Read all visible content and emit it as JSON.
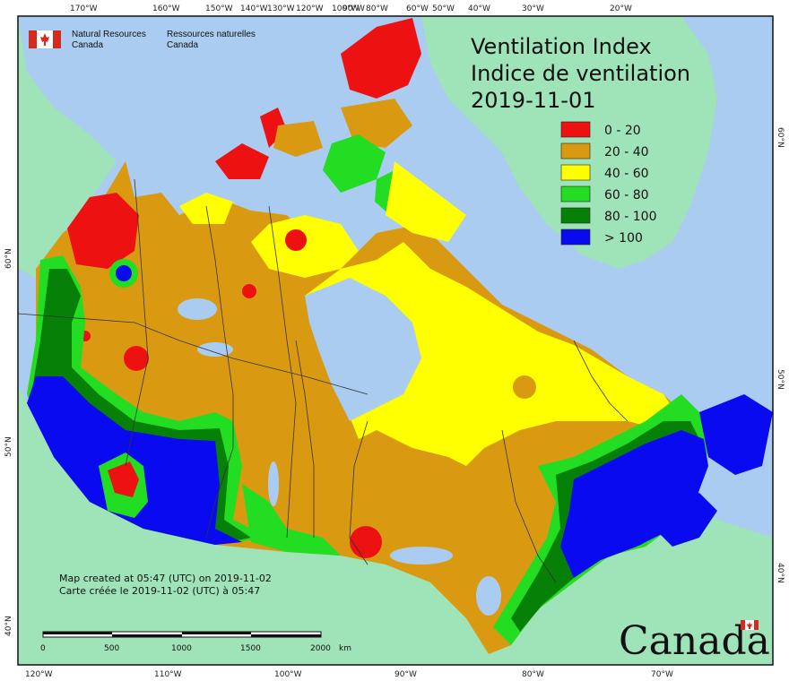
{
  "header": {
    "agency_en_line1": "Natural Resources",
    "agency_en_line2": "Canada",
    "agency_fr_line1": "Ressources naturelles",
    "agency_fr_line2": "Canada"
  },
  "title": {
    "line1": "Ventilation Index",
    "line2": "Indice de ventilation",
    "date": "2019-11-01"
  },
  "legend": [
    {
      "label": "0 - 20",
      "color": "#ee1111"
    },
    {
      "label": "20 - 40",
      "color": "#d99a12"
    },
    {
      "label": "40 - 60",
      "color": "#ffff00"
    },
    {
      "label": "60 - 80",
      "color": "#22dd22"
    },
    {
      "label": "80 - 100",
      "color": "#078007"
    },
    {
      "label": "> 100",
      "color": "#0a0af0"
    }
  ],
  "top_ticks": [
    "170°W",
    "160°W",
    "150°W",
    "140°W",
    "130°W",
    "120°W",
    "100°W",
    "90°W",
    "80°W",
    "60°W",
    "50°W",
    "40°W",
    "30°W",
    "20°W"
  ],
  "bottom_ticks": [
    "120°W",
    "110°W",
    "100°W",
    "90°W",
    "80°W",
    "70°W"
  ],
  "left_ticks": [
    "60°N",
    "50°N",
    "40°N"
  ],
  "right_ticks": [
    "60°N",
    "50°N",
    "40°N"
  ],
  "notes": {
    "line1": "Map created at 05:47 (UTC) on 2019-11-02",
    "line2": "Carte créée le 2019-11-02 (UTC) à 05:47"
  },
  "scalebar": {
    "labels": [
      "0",
      "500",
      "1000",
      "1500",
      "2000"
    ],
    "unit": "km"
  },
  "wordmark": "Canada",
  "colors": {
    "water": "#a9ccf0",
    "land_outside": "#9fe3b8",
    "lakes": "#a9ccf0",
    "border": "#333333"
  }
}
